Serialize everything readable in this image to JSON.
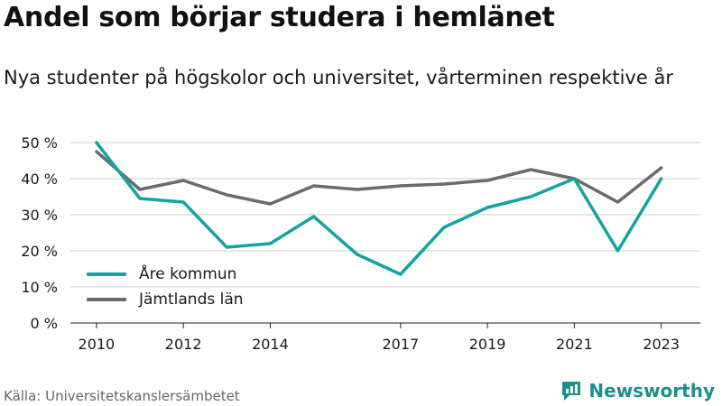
{
  "header": {
    "title": "Andel som börjar studera i hemlänet",
    "subtitle": "Nya studenter på högskolor och universitet, vårterminen respektive år"
  },
  "footer": {
    "source": "Källa: Universitetskanslersämbetet",
    "brand": "Newsworthy",
    "brand_icon": "bar-chart-chat-icon"
  },
  "colors": {
    "are": "#14a3a0",
    "jamtland": "#6b6a70",
    "grid": "#dddddd",
    "brand": "#1f8f8b"
  },
  "chart_data": {
    "type": "line",
    "x": [
      2010,
      2011,
      2012,
      2013,
      2014,
      2015,
      2016,
      2017,
      2018,
      2019,
      2020,
      2021,
      2022,
      2023
    ],
    "series": [
      {
        "name": "Åre kommun",
        "color": "#14a3a0",
        "values": [
          50,
          34.5,
          33.5,
          21,
          22,
          29.5,
          19,
          13.5,
          26.5,
          32,
          35,
          40,
          20,
          40
        ]
      },
      {
        "name": "Jämtlands län",
        "color": "#6b6a70",
        "values": [
          47.5,
          37,
          39.5,
          35.5,
          33,
          38,
          37,
          38,
          38.5,
          39.5,
          42.5,
          40,
          33.5,
          43
        ]
      }
    ],
    "xtick_values": [
      2010,
      2012,
      2014,
      2017,
      2019,
      2021,
      2023
    ],
    "xtick_labels": [
      "2010",
      "2012",
      "2014",
      "2017",
      "2019",
      "2021",
      "2023"
    ],
    "ytick_values": [
      0,
      10,
      20,
      30,
      40,
      50
    ],
    "ytick_labels": [
      "0 %",
      "10 %",
      "20 %",
      "30 %",
      "40 %",
      "50 %"
    ],
    "ylim": [
      0,
      50
    ],
    "xlim": [
      2010,
      2023
    ],
    "grid": true,
    "legend_position": "bottom-left"
  }
}
